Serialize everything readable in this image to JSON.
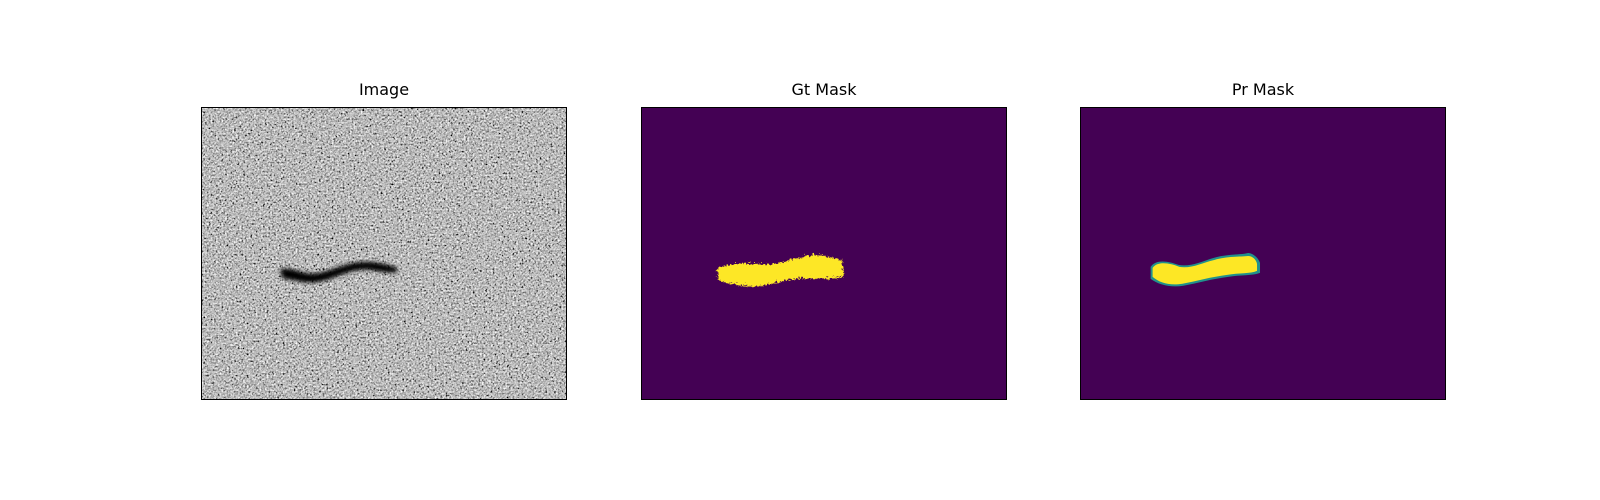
{
  "figure": {
    "panels": [
      {
        "title": "Image"
      },
      {
        "title": "Gt Mask"
      },
      {
        "title": "Pr Mask"
      }
    ],
    "colors": {
      "background": "#440154",
      "foreground": "#fde725",
      "edge": "#21918c"
    }
  }
}
